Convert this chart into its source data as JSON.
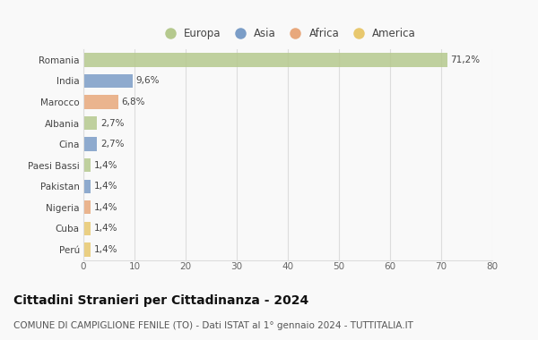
{
  "countries": [
    "Romania",
    "India",
    "Marocco",
    "Albania",
    "Cina",
    "Paesi Bassi",
    "Pakistan",
    "Nigeria",
    "Cuba",
    "Perú"
  ],
  "values": [
    71.2,
    9.6,
    6.8,
    2.7,
    2.7,
    1.4,
    1.4,
    1.4,
    1.4,
    1.4
  ],
  "labels": [
    "71,2%",
    "9,6%",
    "6,8%",
    "2,7%",
    "2,7%",
    "1,4%",
    "1,4%",
    "1,4%",
    "1,4%",
    "1,4%"
  ],
  "colors": [
    "#b5c98e",
    "#7b9dc7",
    "#e8a87c",
    "#b5c98e",
    "#7b9dc7",
    "#b5c98e",
    "#7b9dc7",
    "#e8a87c",
    "#e8c86e",
    "#e8c86e"
  ],
  "continents": [
    "Europa",
    "Asia",
    "Africa",
    "Europa",
    "Asia",
    "Europa",
    "Asia",
    "Africa",
    "America",
    "America"
  ],
  "legend_labels": [
    "Europa",
    "Asia",
    "Africa",
    "America"
  ],
  "legend_colors": [
    "#b5c98e",
    "#7b9dc7",
    "#e8a87c",
    "#e8c86e"
  ],
  "xlim": [
    0,
    80
  ],
  "xticks": [
    0,
    10,
    20,
    30,
    40,
    50,
    60,
    70,
    80
  ],
  "title": "Cittadini Stranieri per Cittadinanza - 2024",
  "subtitle": "COMUNE DI CAMPIGLIONE FENILE (TO) - Dati ISTAT al 1° gennaio 2024 - TUTTITALIA.IT",
  "bg_color": "#f9f9f9",
  "grid_color": "#dddddd",
  "bar_height": 0.65,
  "label_fontsize": 7.5,
  "tick_fontsize": 7.5,
  "title_fontsize": 10,
  "subtitle_fontsize": 7.5,
  "legend_fontsize": 8.5
}
